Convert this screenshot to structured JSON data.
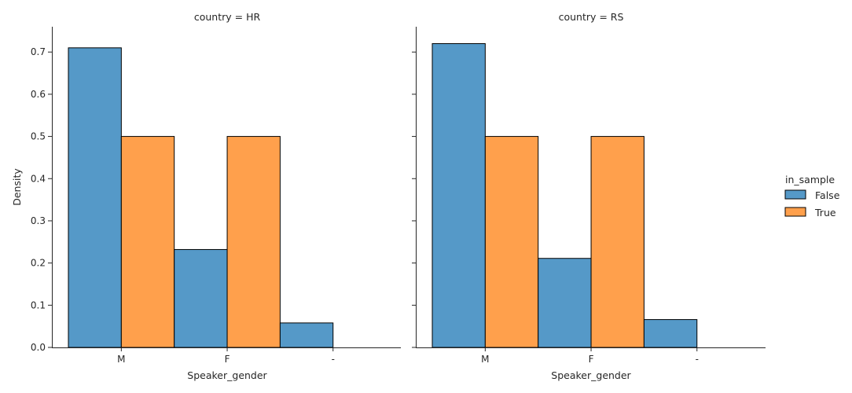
{
  "chart_data": {
    "type": "bar",
    "categories": [
      "M",
      "F",
      "-"
    ],
    "xlabel": "Speaker_gender",
    "ylabel": "Density",
    "ylim": [
      0,
      0.76
    ],
    "yticks": [
      "0.0",
      "0.1",
      "0.2",
      "0.3",
      "0.4",
      "0.5",
      "0.6",
      "0.7"
    ],
    "grid": false,
    "legend": {
      "title": "in_sample",
      "placement": "right",
      "entries": [
        {
          "name": "False",
          "color": "#5599c8"
        },
        {
          "name": "True",
          "color": "#ffa04c"
        }
      ]
    },
    "facets": [
      {
        "title": "country = HR",
        "series": [
          {
            "name": "False",
            "color": "#5599c8",
            "values": [
              0.71,
              0.232,
              0.058
            ]
          },
          {
            "name": "True",
            "color": "#ffa04c",
            "values": [
              0.5,
              0.5,
              0.0
            ]
          }
        ]
      },
      {
        "title": "country = RS",
        "series": [
          {
            "name": "False",
            "color": "#5599c8",
            "values": [
              0.72,
              0.211,
              0.066
            ]
          },
          {
            "name": "True",
            "color": "#ffa04c",
            "values": [
              0.5,
              0.5,
              0.0
            ]
          }
        ]
      }
    ]
  }
}
